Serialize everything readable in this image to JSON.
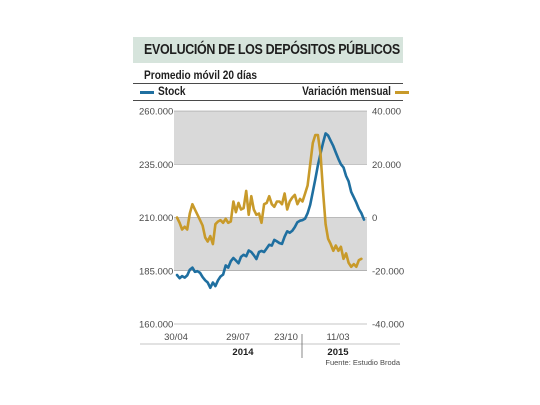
{
  "header": {
    "title": "EVOLUCIÓN DE LOS DEPÓSITOS PÚBLICOS",
    "subtitle": "Promedio móvil 20 días"
  },
  "legend": {
    "stock": "Stock",
    "variation": "Variación mensual"
  },
  "footer": {
    "source": "Fuente: Estudio Broda"
  },
  "colors": {
    "stock": "#1f6fa0",
    "variation": "#c89a2a",
    "band": "#d9d9d9",
    "title_bg": "#d6e4dc"
  },
  "chart_data": {
    "type": "line",
    "title": "EVOLUCIÓN DE LOS DEPÓSITOS PÚBLICOS",
    "subtitle": "Promedio móvil 20 días",
    "x_ticks": [
      "30/04",
      "29/07",
      "23/10",
      "11/03"
    ],
    "x_groups": [
      "2014",
      "2015"
    ],
    "y_left": {
      "range": [
        160000,
        260000
      ],
      "ticks": [
        "160.000",
        "185.000",
        "210.000",
        "235.000",
        "260.000"
      ]
    },
    "y_right": {
      "range": [
        -40000,
        40000
      ],
      "ticks": [
        "-40.000",
        "-20.000",
        "0",
        "20.000",
        "40.000"
      ]
    },
    "shaded_bands": "alternating gray bands between gridlines",
    "series": [
      {
        "name": "Stock",
        "axis": "left",
        "points": [
          [
            0,
            183000
          ],
          [
            1,
            181500
          ],
          [
            2,
            182500
          ],
          [
            3,
            181800
          ],
          [
            4,
            182800
          ],
          [
            5,
            185500
          ],
          [
            6,
            186500
          ],
          [
            7,
            184500
          ],
          [
            8,
            184800
          ],
          [
            9,
            184000
          ],
          [
            10,
            182000
          ],
          [
            11,
            180500
          ],
          [
            12,
            179500
          ],
          [
            13,
            177000
          ],
          [
            14,
            179500
          ],
          [
            15,
            177800
          ],
          [
            16,
            180500
          ],
          [
            17,
            182300
          ],
          [
            18,
            183200
          ],
          [
            19,
            187500
          ],
          [
            20,
            186500
          ],
          [
            21,
            189500
          ],
          [
            22,
            191000
          ],
          [
            23,
            189800
          ],
          [
            24,
            188500
          ],
          [
            25,
            191500
          ],
          [
            26,
            192500
          ],
          [
            27,
            191800
          ],
          [
            28,
            194500
          ],
          [
            29,
            193800
          ],
          [
            30,
            192300
          ],
          [
            31,
            190500
          ],
          [
            32,
            193800
          ],
          [
            33,
            194300
          ],
          [
            34,
            193800
          ],
          [
            35,
            195500
          ],
          [
            36,
            197200
          ],
          [
            37,
            196800
          ],
          [
            38,
            199500
          ],
          [
            39,
            198800
          ],
          [
            40,
            198000
          ],
          [
            41,
            197600
          ],
          [
            42,
            201000
          ],
          [
            43,
            203500
          ],
          [
            44,
            202800
          ],
          [
            45,
            203800
          ],
          [
            46,
            205500
          ],
          [
            47,
            207800
          ],
          [
            48,
            208500
          ],
          [
            49,
            208800
          ],
          [
            50,
            209500
          ],
          [
            51,
            212000
          ],
          [
            52,
            216000
          ],
          [
            53,
            222000
          ],
          [
            54,
            228000
          ],
          [
            55,
            234500
          ],
          [
            56,
            240000
          ],
          [
            57,
            245000
          ],
          [
            58,
            249500
          ],
          [
            59,
            248500
          ],
          [
            60,
            246000
          ],
          [
            61,
            243500
          ],
          [
            62,
            240500
          ],
          [
            63,
            237500
          ],
          [
            64,
            235000
          ],
          [
            65,
            233500
          ],
          [
            66,
            229500
          ],
          [
            67,
            227000
          ],
          [
            68,
            222000
          ],
          [
            69,
            219500
          ],
          [
            70,
            217000
          ],
          [
            71,
            214000
          ],
          [
            72,
            212000
          ],
          [
            73,
            209000
          ]
        ]
      },
      {
        "name": "Variación mensual",
        "axis": "right",
        "points": [
          [
            0,
            0
          ],
          [
            1,
            -2000
          ],
          [
            2,
            -4500
          ],
          [
            3,
            -3500
          ],
          [
            4,
            -4500
          ],
          [
            5,
            1500
          ],
          [
            6,
            5000
          ],
          [
            7,
            3000
          ],
          [
            8,
            1000
          ],
          [
            9,
            -1000
          ],
          [
            10,
            -3000
          ],
          [
            11,
            -7500
          ],
          [
            12,
            -9000
          ],
          [
            13,
            -7000
          ],
          [
            14,
            -10000
          ],
          [
            15,
            -2500
          ],
          [
            16,
            -1500
          ],
          [
            17,
            -1000
          ],
          [
            18,
            -2000
          ],
          [
            19,
            -500
          ],
          [
            20,
            -2000
          ],
          [
            21,
            -1500
          ],
          [
            22,
            6000
          ],
          [
            23,
            2000
          ],
          [
            24,
            5500
          ],
          [
            25,
            3000
          ],
          [
            26,
            3500
          ],
          [
            27,
            10000
          ],
          [
            28,
            1000
          ],
          [
            29,
            8000
          ],
          [
            30,
            3000
          ],
          [
            31,
            1000
          ],
          [
            32,
            1500
          ],
          [
            33,
            -2000
          ],
          [
            34,
            5000
          ],
          [
            35,
            5500
          ],
          [
            36,
            8000
          ],
          [
            37,
            5000
          ],
          [
            38,
            4000
          ],
          [
            39,
            6000
          ],
          [
            40,
            6000
          ],
          [
            41,
            5000
          ],
          [
            42,
            9000
          ],
          [
            43,
            3000
          ],
          [
            44,
            6000
          ],
          [
            45,
            7500
          ],
          [
            46,
            8500
          ],
          [
            47,
            5000
          ],
          [
            48,
            7000
          ],
          [
            49,
            6000
          ],
          [
            50,
            9000
          ],
          [
            51,
            12000
          ],
          [
            52,
            20000
          ],
          [
            53,
            28000
          ],
          [
            54,
            31000
          ],
          [
            55,
            31000
          ],
          [
            56,
            24000
          ],
          [
            57,
            10000
          ],
          [
            58,
            -2500
          ],
          [
            59,
            -8000
          ],
          [
            60,
            -10000
          ],
          [
            61,
            -12500
          ],
          [
            62,
            -10500
          ],
          [
            63,
            -12500
          ],
          [
            64,
            -11000
          ],
          [
            65,
            -15500
          ],
          [
            66,
            -13500
          ],
          [
            67,
            -17000
          ],
          [
            68,
            -18500
          ],
          [
            69,
            -17500
          ],
          [
            70,
            -18500
          ],
          [
            71,
            -16000
          ],
          [
            72,
            -15500
          ]
        ]
      }
    ]
  }
}
